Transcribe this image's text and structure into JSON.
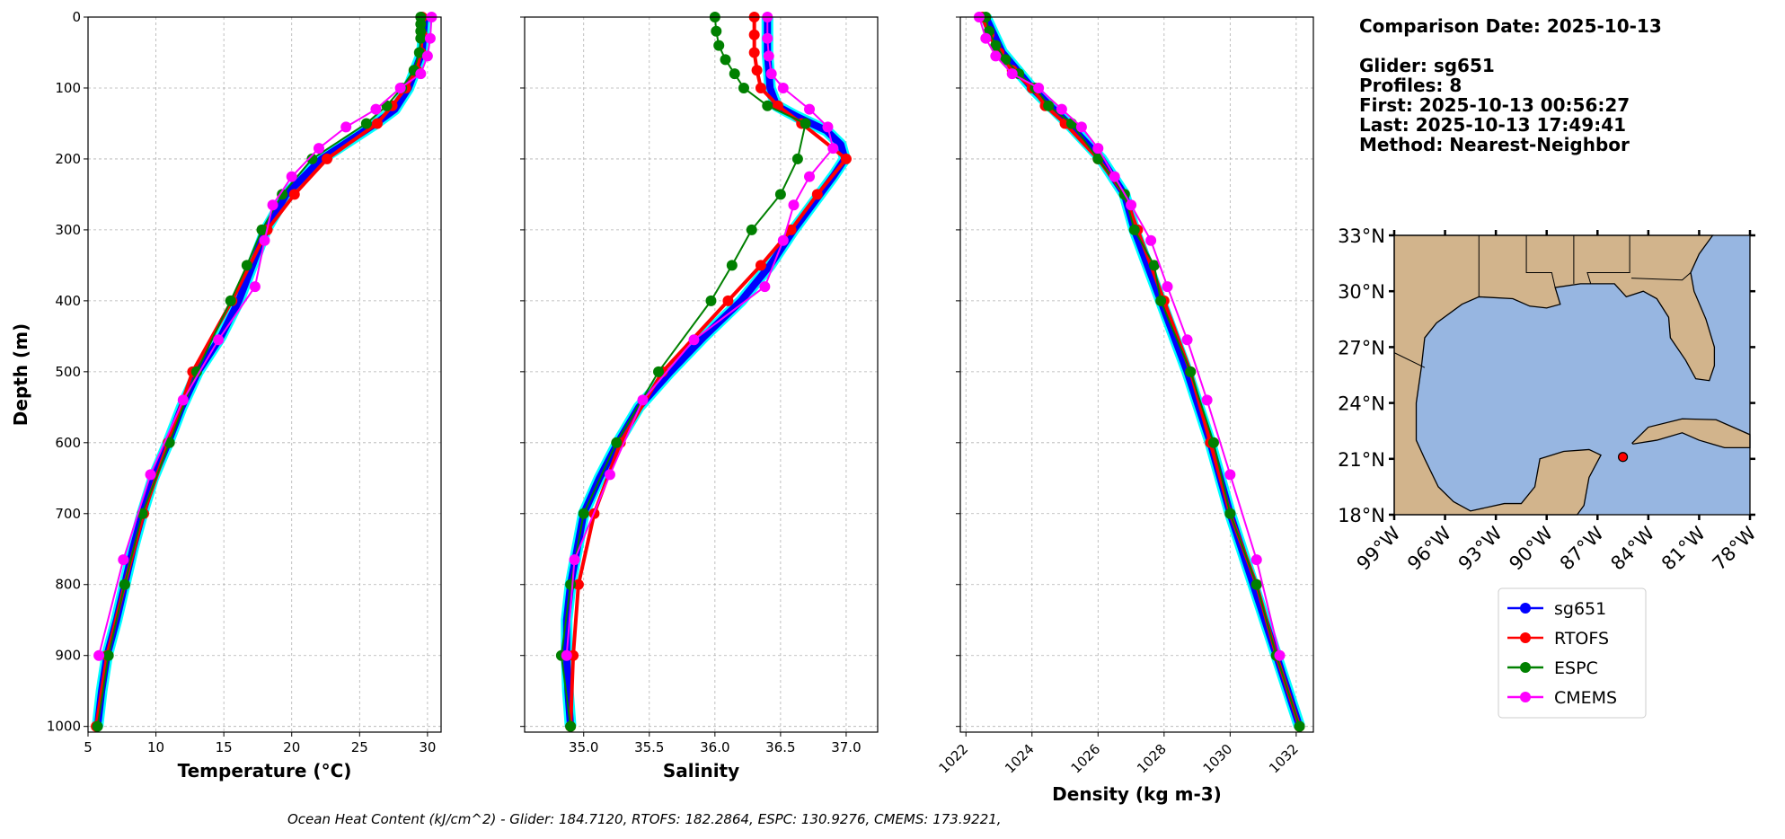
{
  "info": {
    "lines": [
      "Comparison Date: 2025-10-13",
      "",
      "Glider: sg651",
      "Profiles: 8",
      "First: 2025-10-13 00:56:27",
      "Last: 2025-10-13 17:49:41",
      "Method: Nearest-Neighbor"
    ]
  },
  "footer": "Ocean Heat Content (kJ/cm^2) - Glider: 184.7120,  RTOFS: 182.2864,  ESPC: 130.9276,  CMEMS: 173.9221,",
  "colors": {
    "sg651": "#0000ff",
    "sg651_profiles": "#00ffff",
    "RTOFS": "#ff0000",
    "ESPC": "#008000",
    "CMEMS": "#ff00ff",
    "land": "#d2b48c",
    "ocean": "#97b6e1"
  },
  "legend": [
    "sg651",
    "RTOFS",
    "ESPC",
    "CMEMS"
  ],
  "chart_data": [
    {
      "type": "line",
      "xlabel": "Temperature (°C)",
      "ylabel": "Depth (m)",
      "xlim": [
        5,
        31
      ],
      "ylim": [
        1008,
        0
      ],
      "grid": true,
      "xticks": [
        5,
        10,
        15,
        20,
        25,
        30
      ],
      "yticks": [
        0,
        100,
        200,
        300,
        400,
        500,
        600,
        700,
        800,
        900,
        1000
      ],
      "series": [
        {
          "name": "sg651",
          "depth": [
            0,
            50,
            100,
            130,
            150,
            175,
            200,
            250,
            300,
            350,
            400,
            450,
            500,
            550,
            600,
            650,
            700,
            750,
            800,
            850,
            900,
            950,
            1000
          ],
          "values": [
            29.8,
            29.6,
            28.6,
            27.6,
            26.2,
            24.2,
            22.2,
            19.6,
            18.1,
            17.1,
            16.1,
            14.8,
            13.1,
            11.9,
            10.9,
            9.8,
            9.0,
            8.3,
            7.7,
            7.1,
            6.4,
            6.0,
            5.7
          ]
        },
        {
          "name": "RTOFS",
          "depth": [
            0,
            25,
            50,
            75,
            100,
            125,
            150,
            200,
            250,
            300,
            400,
            500,
            600,
            700,
            800,
            900,
            1000
          ],
          "values": [
            29.6,
            29.6,
            29.5,
            29.2,
            28.4,
            27.4,
            26.3,
            22.6,
            20.2,
            18.2,
            15.6,
            12.7,
            10.9,
            9.1,
            7.7,
            6.4,
            5.6
          ]
        },
        {
          "name": "ESPC",
          "depth": [
            0,
            10,
            20,
            30,
            50,
            75,
            100,
            125,
            150,
            200,
            250,
            300,
            350,
            400,
            500,
            600,
            700,
            800,
            900,
            1000
          ],
          "values": [
            29.5,
            29.5,
            29.5,
            29.5,
            29.4,
            29.0,
            28.1,
            27.0,
            25.5,
            21.5,
            19.3,
            17.8,
            16.7,
            15.5,
            13.0,
            11.0,
            9.0,
            7.7,
            6.5,
            5.7
          ]
        },
        {
          "name": "CMEMS",
          "depth": [
            0,
            30,
            55,
            80,
            100,
            130,
            155,
            185,
            225,
            265,
            315,
            380,
            455,
            540,
            645,
            765,
            900
          ],
          "values": [
            30.3,
            30.2,
            30.0,
            29.5,
            28.0,
            26.2,
            24.0,
            22.0,
            20.0,
            18.6,
            18.0,
            17.3,
            14.6,
            12.0,
            9.6,
            7.6,
            5.8
          ]
        }
      ]
    },
    {
      "type": "line",
      "xlabel": "Salinity",
      "xlim": [
        34.55,
        37.24
      ],
      "ylim": [
        1008,
        0
      ],
      "grid": true,
      "xticks": [
        35.0,
        35.5,
        36.0,
        36.5,
        37.0
      ],
      "series": [
        {
          "name": "sg651",
          "depth": [
            0,
            50,
            100,
            125,
            140,
            160,
            180,
            200,
            225,
            250,
            275,
            300,
            350,
            400,
            450,
            500,
            550,
            600,
            650,
            700,
            750,
            800,
            850,
            900,
            950,
            1000
          ],
          "values": [
            36.4,
            36.4,
            36.42,
            36.47,
            36.62,
            36.85,
            36.96,
            36.99,
            36.9,
            36.8,
            36.7,
            36.6,
            36.42,
            36.2,
            35.92,
            35.66,
            35.42,
            35.26,
            35.12,
            35.0,
            34.95,
            34.9,
            34.87,
            34.87,
            34.88,
            34.9
          ]
        },
        {
          "name": "RTOFS",
          "depth": [
            0,
            25,
            50,
            75,
            100,
            125,
            150,
            200,
            250,
            300,
            350,
            400,
            500,
            600,
            700,
            800,
            900,
            1000
          ],
          "values": [
            36.3,
            36.3,
            36.3,
            36.32,
            36.35,
            36.48,
            36.66,
            37.0,
            36.78,
            36.58,
            36.35,
            36.1,
            35.6,
            35.28,
            35.08,
            34.96,
            34.92,
            34.9
          ]
        },
        {
          "name": "ESPC",
          "depth": [
            0,
            20,
            40,
            60,
            80,
            100,
            125,
            150,
            200,
            250,
            300,
            350,
            400,
            500,
            600,
            700,
            800,
            900,
            1000
          ],
          "values": [
            36.0,
            36.01,
            36.03,
            36.08,
            36.15,
            36.22,
            36.4,
            36.69,
            36.63,
            36.5,
            36.28,
            36.13,
            35.97,
            35.57,
            35.25,
            35.0,
            34.9,
            34.83,
            34.9
          ]
        },
        {
          "name": "CMEMS",
          "depth": [
            0,
            30,
            55,
            80,
            100,
            130,
            155,
            185,
            225,
            265,
            315,
            380,
            455,
            540,
            645,
            765,
            900
          ],
          "values": [
            36.4,
            36.4,
            36.41,
            36.43,
            36.52,
            36.72,
            36.86,
            36.9,
            36.72,
            36.6,
            36.52,
            36.38,
            35.84,
            35.45,
            35.2,
            34.93,
            34.87
          ]
        }
      ]
    },
    {
      "type": "line",
      "xlabel": "Density (kg m-3)",
      "xlim": [
        1021.83,
        1032.52
      ],
      "ylim": [
        1008,
        0
      ],
      "grid": true,
      "xticks": [
        1022,
        1024,
        1026,
        1028,
        1030,
        1032
      ],
      "series": [
        {
          "name": "sg651",
          "depth": [
            0,
            50,
            100,
            150,
            200,
            250,
            300,
            400,
            500,
            600,
            700,
            800,
            900,
            1000
          ],
          "values": [
            1022.6,
            1023.1,
            1024.0,
            1025.1,
            1026.1,
            1026.8,
            1027.1,
            1027.9,
            1028.7,
            1029.4,
            1030.0,
            1030.7,
            1031.4,
            1032.1
          ]
        },
        {
          "name": "RTOFS",
          "depth": [
            0,
            25,
            50,
            75,
            100,
            125,
            150,
            200,
            250,
            300,
            400,
            500,
            600,
            700,
            800,
            900,
            1000
          ],
          "values": [
            1022.5,
            1022.7,
            1023.0,
            1023.4,
            1024.0,
            1024.4,
            1025.0,
            1026.0,
            1026.8,
            1027.2,
            1028.0,
            1028.8,
            1029.4,
            1030.0,
            1030.8,
            1031.4,
            1032.1
          ]
        },
        {
          "name": "ESPC",
          "depth": [
            0,
            20,
            40,
            60,
            80,
            100,
            125,
            150,
            200,
            250,
            300,
            350,
            400,
            500,
            600,
            700,
            800,
            900,
            1000
          ],
          "values": [
            1022.6,
            1022.7,
            1022.9,
            1023.2,
            1023.6,
            1024.1,
            1024.5,
            1025.2,
            1026.0,
            1026.8,
            1027.1,
            1027.7,
            1027.9,
            1028.8,
            1029.5,
            1030.0,
            1030.8,
            1031.4,
            1032.1
          ]
        },
        {
          "name": "CMEMS",
          "depth": [
            0,
            30,
            55,
            80,
            100,
            130,
            155,
            185,
            225,
            265,
            315,
            380,
            455,
            540,
            645,
            765,
            900
          ],
          "values": [
            1022.4,
            1022.6,
            1022.9,
            1023.4,
            1024.2,
            1024.9,
            1025.5,
            1026.0,
            1026.5,
            1027.0,
            1027.6,
            1028.1,
            1028.7,
            1029.3,
            1030.0,
            1030.8,
            1031.5
          ]
        }
      ]
    },
    {
      "type": "map",
      "xlim": [
        -99,
        -78
      ],
      "ylim": [
        18,
        33
      ],
      "xticklabels": [
        "99°W",
        "96°W",
        "93°W",
        "90°W",
        "87°W",
        "84°W",
        "81°W",
        "78°W"
      ],
      "yticklabels": [
        "18°N",
        "21°N",
        "24°N",
        "27°N",
        "30°N",
        "33°N"
      ],
      "glider_location": {
        "lon": -85.5,
        "lat": 21.1
      }
    }
  ]
}
